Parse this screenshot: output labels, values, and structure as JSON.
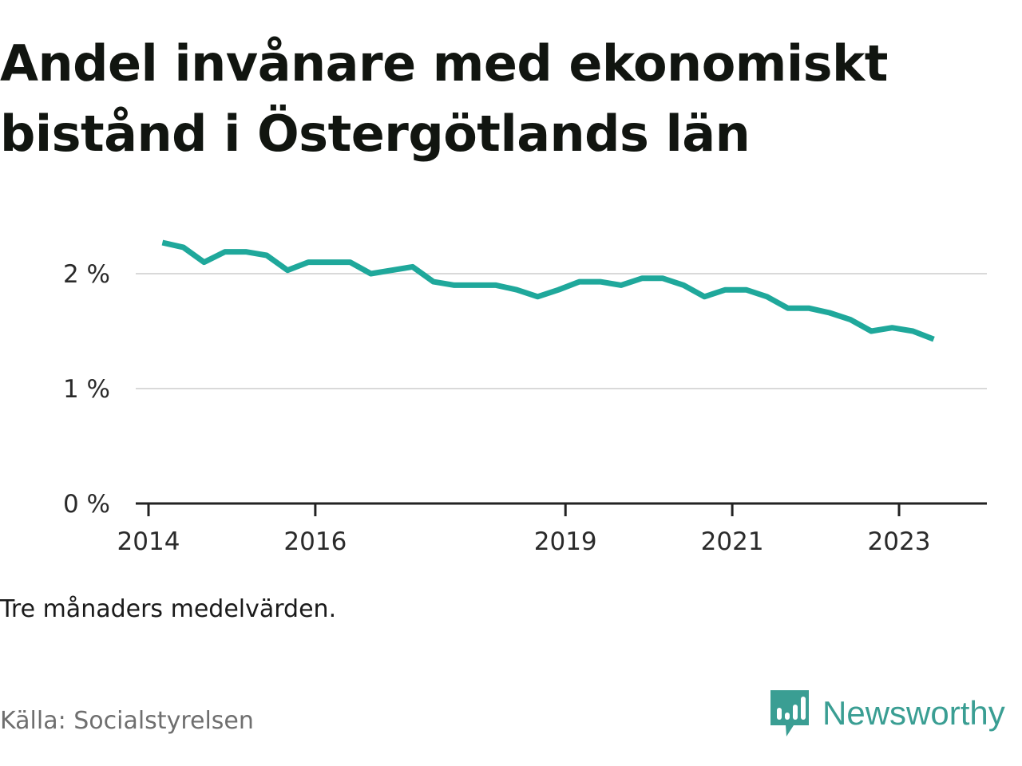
{
  "title": "Andel invånare med ekonomiskt bistånd i Östergötlands län",
  "note": "Tre månaders medelvärden.",
  "source": "Källa: Socialstyrelsen",
  "brand": {
    "name": "Newsworthy",
    "icon": "newsworthy-logo-icon",
    "color": "#3a9e93"
  },
  "colors": {
    "line": "#1fa89b",
    "grid": "#d9d9d9",
    "axis": "#222222"
  },
  "chart_data": {
    "type": "line",
    "title": "Andel invånare med ekonomiskt bistånd i Östergötlands län",
    "xlabel": "",
    "ylabel": "",
    "x_ticks": [
      "2014",
      "2016",
      "2019",
      "2021",
      "2023"
    ],
    "y_ticks": [
      "0 %",
      "1 %",
      "2 %"
    ],
    "ylim": [
      0,
      2.5
    ],
    "xlim": [
      "2014-01",
      "2024-01"
    ],
    "grid": true,
    "series": [
      {
        "values": [
          {
            "x": "2014-03",
            "y": 2.27
          },
          {
            "x": "2014-06",
            "y": 2.23
          },
          {
            "x": "2014-09",
            "y": 2.1
          },
          {
            "x": "2014-12",
            "y": 2.19
          },
          {
            "x": "2015-03",
            "y": 2.19
          },
          {
            "x": "2015-06",
            "y": 2.16
          },
          {
            "x": "2015-09",
            "y": 2.03
          },
          {
            "x": "2015-12",
            "y": 2.1
          },
          {
            "x": "2016-03",
            "y": 2.1
          },
          {
            "x": "2016-06",
            "y": 2.1
          },
          {
            "x": "2016-09",
            "y": 2.0
          },
          {
            "x": "2016-12",
            "y": 2.03
          },
          {
            "x": "2017-03",
            "y": 2.06
          },
          {
            "x": "2017-06",
            "y": 1.93
          },
          {
            "x": "2017-09",
            "y": 1.9
          },
          {
            "x": "2017-12",
            "y": 1.9
          },
          {
            "x": "2018-03",
            "y": 1.9
          },
          {
            "x": "2018-06",
            "y": 1.86
          },
          {
            "x": "2018-09",
            "y": 1.8
          },
          {
            "x": "2018-12",
            "y": 1.86
          },
          {
            "x": "2019-03",
            "y": 1.93
          },
          {
            "x": "2019-06",
            "y": 1.93
          },
          {
            "x": "2019-09",
            "y": 1.9
          },
          {
            "x": "2019-12",
            "y": 1.96
          },
          {
            "x": "2020-03",
            "y": 1.96
          },
          {
            "x": "2020-06",
            "y": 1.9
          },
          {
            "x": "2020-09",
            "y": 1.8
          },
          {
            "x": "2020-12",
            "y": 1.86
          },
          {
            "x": "2021-03",
            "y": 1.86
          },
          {
            "x": "2021-06",
            "y": 1.8
          },
          {
            "x": "2021-09",
            "y": 1.7
          },
          {
            "x": "2021-12",
            "y": 1.7
          },
          {
            "x": "2022-03",
            "y": 1.66
          },
          {
            "x": "2022-06",
            "y": 1.6
          },
          {
            "x": "2022-09",
            "y": 1.5
          },
          {
            "x": "2022-12",
            "y": 1.53
          },
          {
            "x": "2023-03",
            "y": 1.5
          },
          {
            "x": "2023-06",
            "y": 1.43
          }
        ]
      }
    ]
  }
}
